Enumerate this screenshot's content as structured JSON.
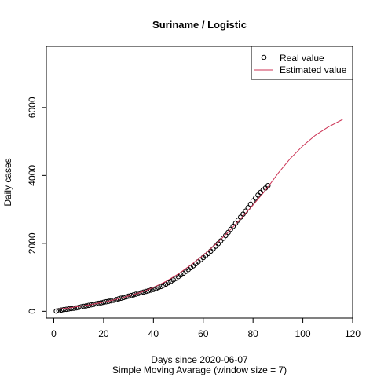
{
  "chart_data": {
    "type": "line",
    "title": "Suriname / Logistic",
    "xlabel": "Days since 2020-06-07",
    "subtitle": "Simple Moving Avarage (window size = 7)",
    "ylabel": "Daily cases",
    "xlim": [
      -3,
      120
    ],
    "ylim": [
      -200,
      7800
    ],
    "x_ticks": [
      0,
      20,
      40,
      60,
      80,
      100,
      120
    ],
    "y_ticks": [
      0,
      2000,
      4000,
      6000
    ],
    "grid": false,
    "legend_position": "top-right",
    "series": [
      {
        "name": "Real value",
        "style": "points",
        "color": "#000000",
        "x": [
          1,
          2,
          3,
          4,
          5,
          6,
          7,
          8,
          9,
          10,
          11,
          12,
          13,
          14,
          15,
          16,
          17,
          18,
          19,
          20,
          21,
          22,
          23,
          24,
          25,
          26,
          27,
          28,
          29,
          30,
          31,
          32,
          33,
          34,
          35,
          36,
          37,
          38,
          39,
          40,
          41,
          42,
          43,
          44,
          45,
          46,
          47,
          48,
          49,
          50,
          51,
          52,
          53,
          54,
          55,
          56,
          57,
          58,
          59,
          60,
          61,
          62,
          63,
          64,
          65,
          66,
          67,
          68,
          69,
          70,
          71,
          72,
          73,
          74,
          75,
          76,
          77,
          78,
          79,
          80,
          81,
          82,
          83,
          84,
          85,
          86
        ],
        "y": [
          5,
          20,
          35,
          50,
          60,
          70,
          80,
          90,
          100,
          115,
          130,
          145,
          160,
          175,
          190,
          205,
          220,
          235,
          250,
          265,
          280,
          295,
          310,
          325,
          345,
          365,
          385,
          405,
          425,
          445,
          465,
          485,
          505,
          525,
          545,
          565,
          585,
          605,
          625,
          645,
          670,
          700,
          730,
          765,
          800,
          840,
          880,
          925,
          970,
          1020,
          1070,
          1120,
          1175,
          1230,
          1285,
          1340,
          1400,
          1460,
          1520,
          1580,
          1640,
          1700,
          1770,
          1840,
          1915,
          1990,
          2070,
          2150,
          2230,
          2320,
          2410,
          2500,
          2590,
          2680,
          2770,
          2860,
          2950,
          3050,
          3150,
          3250,
          3330,
          3420,
          3500,
          3570,
          3630,
          3700
        ]
      },
      {
        "name": "Estimated value",
        "style": "line",
        "color": "#cc3355",
        "x": [
          1,
          5,
          10,
          15,
          20,
          25,
          30,
          35,
          40,
          45,
          50,
          55,
          60,
          65,
          70,
          75,
          80,
          85,
          90,
          95,
          100,
          105,
          110,
          116
        ],
        "y": [
          60,
          90,
          140,
          200,
          270,
          350,
          450,
          560,
          700,
          880,
          1100,
          1360,
          1650,
          1970,
          2330,
          2720,
          3130,
          3560,
          4060,
          4500,
          4870,
          5180,
          5420,
          5650
        ]
      }
    ]
  }
}
